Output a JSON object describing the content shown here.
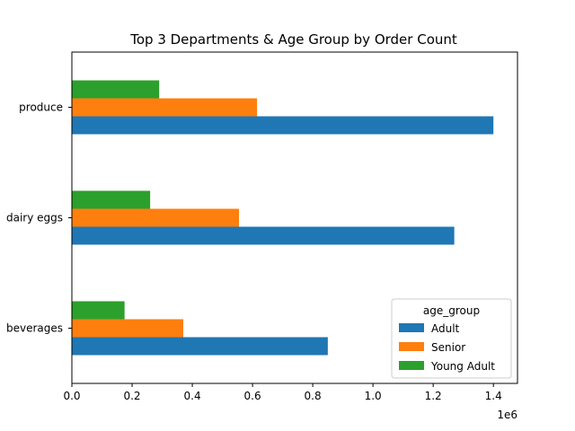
{
  "chart_data": {
    "type": "bar",
    "orientation": "horizontal",
    "title": "Top 3 Departments & Age Group by Order Count",
    "xlabel": "",
    "ylabel": "",
    "x_offset_label": "1e6",
    "categories": [
      "beverages",
      "dairy eggs",
      "produce"
    ],
    "series": [
      {
        "name": "Adult",
        "color": "#1f77b4",
        "values": [
          850000,
          1270000,
          1400000
        ]
      },
      {
        "name": "Senior",
        "color": "#ff7f0e",
        "values": [
          370000,
          555000,
          615000
        ]
      },
      {
        "name": "Young Adult",
        "color": "#2ca02c",
        "values": [
          175000,
          260000,
          290000
        ]
      }
    ],
    "xlim": [
      0,
      1480000
    ],
    "xticks": [
      0,
      200000,
      400000,
      600000,
      800000,
      1000000,
      1200000,
      1400000
    ],
    "xtick_labels": [
      "0.0",
      "0.2",
      "0.4",
      "0.6",
      "0.8",
      "1.0",
      "1.2",
      "1.4"
    ],
    "grid": false,
    "legend": {
      "title": "age_group",
      "position": "lower-right"
    }
  }
}
